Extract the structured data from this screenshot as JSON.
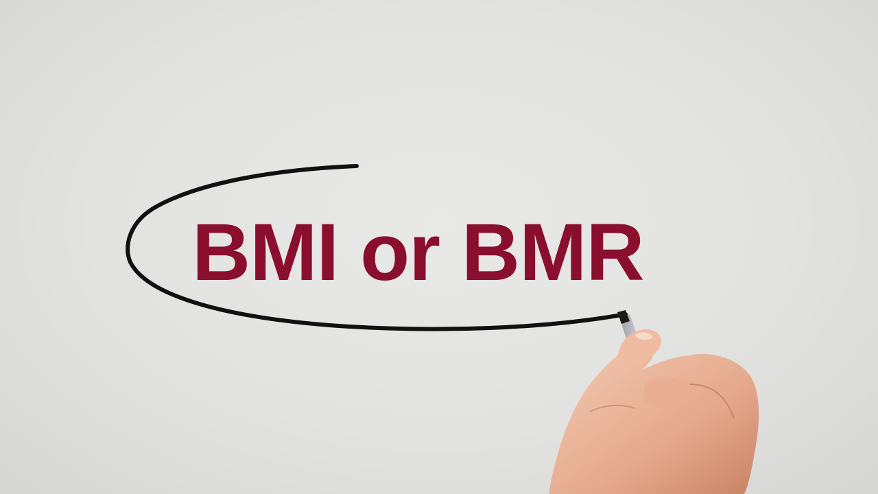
{
  "headline": {
    "text": "BMI or BMR",
    "color": "#8a0f2e"
  },
  "marker": {
    "ink_color": "#111111",
    "icon": "marker-pen-icon"
  }
}
